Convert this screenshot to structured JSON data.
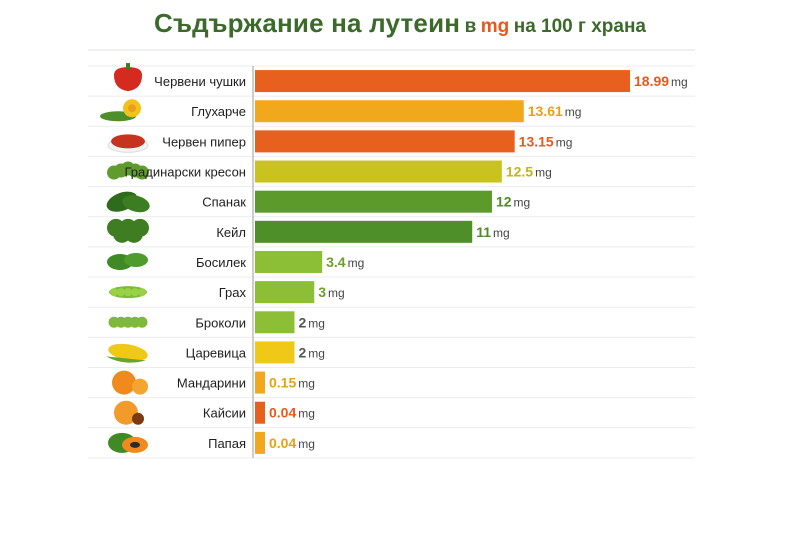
{
  "title": {
    "main": "Съдържание на лутеин",
    "pre": "в",
    "unit": "mg",
    "post": "на 100 г храна"
  },
  "chart_data": {
    "type": "bar",
    "orientation": "horizontal",
    "unit": "mg",
    "categories": [
      "Червени чушки",
      "Глухарче",
      "Червен пипер",
      "Градинарски кресон",
      "Спанак",
      "Кейл",
      "Босилек",
      "Грах",
      "Броколи",
      "Царевица",
      "Мандарини",
      "Кайсии",
      "Папая"
    ],
    "values": [
      18.99,
      13.61,
      13.15,
      12.5,
      12,
      11,
      3.4,
      3,
      2,
      2,
      0.15,
      0.04,
      0.04
    ],
    "value_labels": [
      "18.99",
      "13.61",
      "13.15",
      "12.5",
      "12",
      "11",
      "3.4",
      "3",
      "2",
      "2",
      "0.15",
      "0.04",
      "0.04"
    ],
    "bar_colors": [
      "#e8601d",
      "#f2a81c",
      "#e8601d",
      "#c9c21f",
      "#5c9a2c",
      "#4f8f2a",
      "#8cbf35",
      "#8cbf35",
      "#8cbf35",
      "#f0c818",
      "#f2a81c",
      "#e8601d",
      "#f2a81c"
    ],
    "label_colors": [
      "#e55a1c",
      "#e8a01a",
      "#e55a1c",
      "#c4b41a",
      "#4e8a28",
      "#4e8a28",
      "#6e9e2c",
      "#6e9e2c",
      "#555555",
      "#555555",
      "#e8a01a",
      "#e55a1c",
      "#e8a01a"
    ],
    "icons": [
      "red-pepper-icon",
      "dandelion-icon",
      "paprika-icon",
      "cress-icon",
      "spinach-icon",
      "kale-icon",
      "basil-icon",
      "peas-icon",
      "broccoli-icon",
      "corn-icon",
      "tangerine-icon",
      "apricot-icon",
      "papaya-icon"
    ],
    "xlim": [
      0,
      20
    ],
    "grid": true
  }
}
